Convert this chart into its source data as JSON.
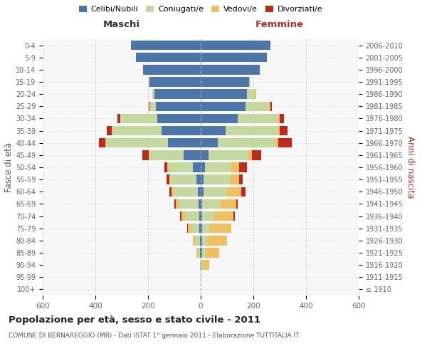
{
  "age_groups": [
    "100+",
    "95-99",
    "90-94",
    "85-89",
    "80-84",
    "75-79",
    "70-74",
    "65-69",
    "60-64",
    "55-59",
    "50-54",
    "45-49",
    "40-44",
    "35-39",
    "30-34",
    "25-29",
    "20-24",
    "15-19",
    "10-14",
    "5-9",
    "0-4"
  ],
  "birth_years": [
    "≤ 1910",
    "1911-1915",
    "1916-1920",
    "1921-1925",
    "1926-1930",
    "1931-1935",
    "1936-1940",
    "1941-1945",
    "1946-1950",
    "1951-1955",
    "1956-1960",
    "1961-1965",
    "1966-1970",
    "1971-1975",
    "1976-1980",
    "1981-1985",
    "1986-1990",
    "1991-1995",
    "1996-2000",
    "2001-2005",
    "2006-2010"
  ],
  "males": {
    "single": [
      0,
      0,
      1,
      2,
      3,
      5,
      5,
      8,
      10,
      15,
      30,
      65,
      125,
      150,
      165,
      170,
      175,
      195,
      220,
      245,
      265
    ],
    "married": [
      0,
      0,
      2,
      8,
      18,
      32,
      55,
      75,
      95,
      100,
      95,
      130,
      235,
      185,
      140,
      25,
      10,
      2,
      0,
      0,
      0
    ],
    "widowed": [
      0,
      0,
      0,
      5,
      8,
      12,
      14,
      12,
      5,
      3,
      2,
      2,
      2,
      2,
      0,
      0,
      0,
      0,
      0,
      0,
      0
    ],
    "divorced": [
      0,
      0,
      0,
      0,
      0,
      2,
      5,
      5,
      10,
      12,
      12,
      25,
      25,
      20,
      10,
      3,
      0,
      0,
      0,
      0,
      0
    ]
  },
  "females": {
    "single": [
      0,
      0,
      2,
      5,
      5,
      5,
      5,
      5,
      10,
      10,
      15,
      30,
      65,
      95,
      140,
      170,
      175,
      185,
      225,
      250,
      265
    ],
    "married": [
      0,
      2,
      5,
      15,
      20,
      30,
      45,
      70,
      90,
      100,
      100,
      150,
      220,
      200,
      155,
      90,
      30,
      5,
      0,
      0,
      0
    ],
    "widowed": [
      0,
      2,
      25,
      50,
      75,
      80,
      75,
      60,
      55,
      35,
      30,
      15,
      10,
      5,
      5,
      5,
      5,
      0,
      0,
      0,
      0
    ],
    "divorced": [
      0,
      0,
      0,
      0,
      0,
      2,
      5,
      5,
      15,
      15,
      30,
      35,
      50,
      30,
      15,
      5,
      2,
      0,
      0,
      0,
      0
    ]
  },
  "colors": {
    "single": "#4e75aa",
    "married": "#c5d8a0",
    "widowed": "#f0c060",
    "divorced": "#c0281b"
  },
  "xlim": 600,
  "title": "Popolazione per età, sesso e stato civile - 2011",
  "subtitle": "COMUNE DI BERNAREGGIO (MB) - Dati ISTAT 1° gennaio 2011 - Elaborazione TUTTITALIA.IT",
  "maschi": "Maschi",
  "femmine": "Femmine",
  "ylabel_left": "Fasce di età",
  "ylabel_right": "Anni di nascita",
  "bg_color": "#ffffff",
  "plot_bg": "#f7f7f7",
  "grid_color": "#cccccc",
  "femmine_color": "#c0281b",
  "maschi_color": "#333333"
}
